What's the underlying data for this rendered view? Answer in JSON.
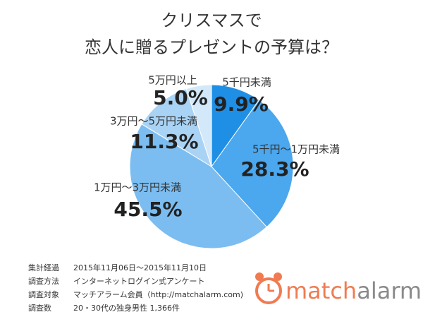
{
  "chart_data": {
    "type": "pie",
    "title": [
      "クリスマスで",
      "恋人に贈るプレゼントの予算は？"
    ],
    "categories": [
      "5千円未満",
      "5千円～1万円未満",
      "1万円～3万円未満",
      "3万円～5万円未満",
      "5万円以上"
    ],
    "values": [
      9.9,
      28.3,
      45.5,
      11.3,
      5.0
    ],
    "value_labels": [
      "9.9%",
      "28.3%",
      "45.5%",
      "11.3%",
      "5.0%"
    ],
    "colors": [
      "#1f8fe6",
      "#4ba7ee",
      "#7bbdf1",
      "#a9d3f5",
      "#d3e9fa"
    ],
    "notes": [
      [
        "集計経過",
        "2015年11月06日～2015年11月10日"
      ],
      [
        "調査方法",
        "インターネットログイン式アンケート"
      ],
      [
        "調査対象",
        "マッチアラーム会員（http://matchalarm.com)"
      ],
      [
        "調査数",
        "20・30代の独身男性 1,366件"
      ]
    ],
    "logo": [
      "match",
      "alarm"
    ]
  }
}
